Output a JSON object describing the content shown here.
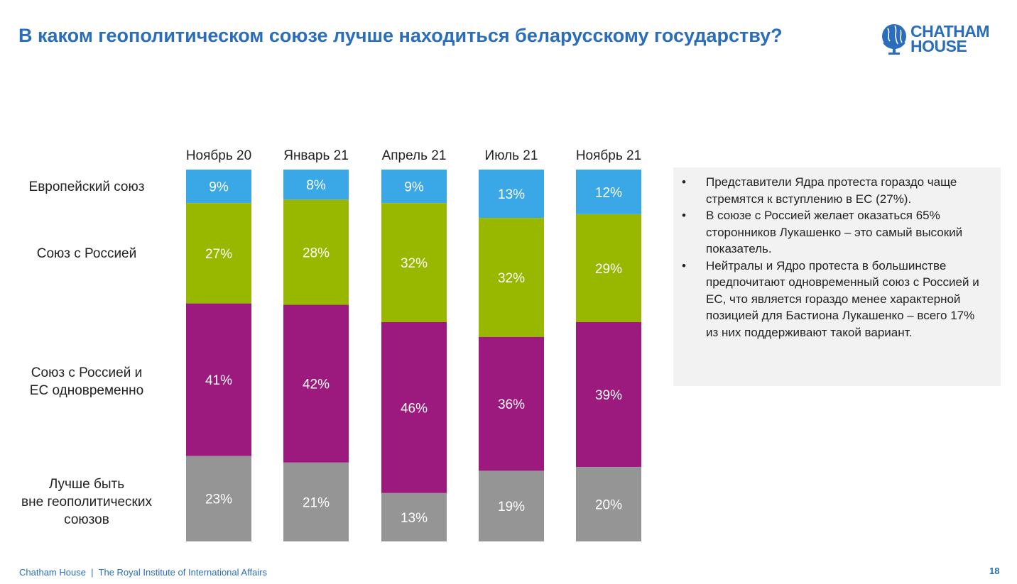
{
  "header": {
    "title": "В каком геополитическом союзе лучше находиться беларусскому государству?"
  },
  "logo": {
    "text_line1": "CHATHAM",
    "text_line2": "HOUSE"
  },
  "colors": {
    "title": "#2a6ebb",
    "eu": "#3aa8e6",
    "russia": "#98b800",
    "both": "#9c1a7d",
    "none": "#959595"
  },
  "chart_data": {
    "type": "bar",
    "stacked": true,
    "orientation": "vertical",
    "categories": [
      "Ноябрь 20",
      "Январь 21",
      "Апрель 21",
      "Июль 21",
      "Ноябрь 21"
    ],
    "series": [
      {
        "name": "Европейский союз",
        "color": "#3aa8e6",
        "values": [
          9,
          8,
          9,
          13,
          12
        ]
      },
      {
        "name": "Союз с Россией",
        "color": "#98b800",
        "values": [
          27,
          28,
          32,
          32,
          29
        ]
      },
      {
        "name": "Союз с Россией и ЕС одновременно",
        "color": "#9c1a7d",
        "values": [
          41,
          42,
          46,
          36,
          39
        ]
      },
      {
        "name": "Лучше быть вне геополитических союзов",
        "color": "#959595",
        "values": [
          23,
          21,
          13,
          19,
          20
        ]
      }
    ],
    "unit": "%",
    "legend_placement": "left",
    "grid": false
  },
  "row_labels": [
    "Европейский союз",
    "Союз с Россией",
    "Союз с Россией и\nЕС одновременно",
    "Лучше быть\nвне геополитических\nсоюзов"
  ],
  "notes": [
    "Представители Ядра протеста гораздо чаще стремятся к вступлению в ЕС (27%).",
    "В союзе с Россией желает оказаться 65% сторонников Лукашенко – это самый высокий показатель.",
    "Нейтралы и Ядро протеста в большинстве предпочитают одновременный союз с Россией и ЕС, что является гораздо менее характерной позицией для Бастиона Лукашенко – всего 17% из них поддерживают такой вариант."
  ],
  "footer": {
    "text": "Chatham House  |  The Royal Institute of International Affairs",
    "page": "18"
  }
}
